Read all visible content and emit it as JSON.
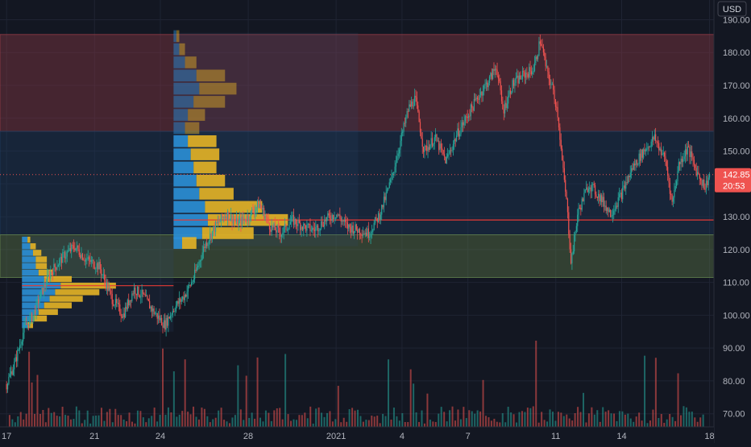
{
  "currency_label": "USD",
  "last_price_label": "142.85",
  "countdown_label": "20:53",
  "chart_data": {
    "type": "candlestick",
    "title": "",
    "ylim": [
      66,
      196
    ],
    "y_ticks": [
      70,
      80,
      90,
      100,
      110,
      120,
      130,
      140,
      150,
      160,
      170,
      180,
      190
    ],
    "x_ticks": [
      {
        "label": "17",
        "day": 0
      },
      {
        "label": "21",
        "day": 4
      },
      {
        "label": "24",
        "day": 7
      },
      {
        "label": "28",
        "day": 11
      },
      {
        "label": "2021",
        "day": 15
      },
      {
        "label": "4",
        "day": 18
      },
      {
        "label": "7",
        "day": 21
      },
      {
        "label": "11",
        "day": 25
      },
      {
        "label": "14",
        "day": 28
      },
      {
        "label": "18",
        "day": 32
      }
    ],
    "x_range_days": [
      -0.3,
      32.2
    ],
    "last_price": 142.85,
    "horizontal_line": 129,
    "zones": [
      {
        "name": "red-zone",
        "y1": 156,
        "y2": 185.5,
        "color": "#8b3a44"
      },
      {
        "name": "blue-zone",
        "y1": 124.5,
        "y2": 156,
        "color": "#1d3a5a"
      },
      {
        "name": "green-zone",
        "y1": 111.5,
        "y2": 124.5,
        "color": "#5c7a4a"
      }
    ],
    "price_path": [
      [
        0,
        79
      ],
      [
        0.4,
        86
      ],
      [
        0.8,
        96
      ],
      [
        1.2,
        100
      ],
      [
        1.6,
        107
      ],
      [
        2,
        113
      ],
      [
        2.6,
        118
      ],
      [
        3.1,
        121
      ],
      [
        3.6,
        117
      ],
      [
        4.2,
        115
      ],
      [
        4.8,
        105
      ],
      [
        5.3,
        100
      ],
      [
        5.8,
        108
      ],
      [
        6.2,
        106
      ],
      [
        6.7,
        101
      ],
      [
        7.2,
        97
      ],
      [
        7.6,
        102
      ],
      [
        8.1,
        106
      ],
      [
        8.5,
        111
      ],
      [
        9,
        121
      ],
      [
        9.5,
        127
      ],
      [
        10,
        131
      ],
      [
        10.5,
        128
      ],
      [
        11,
        130
      ],
      [
        11.5,
        134
      ],
      [
        12,
        127
      ],
      [
        12.5,
        125
      ],
      [
        13,
        129
      ],
      [
        13.5,
        127
      ],
      [
        14,
        126
      ],
      [
        14.5,
        129
      ],
      [
        15,
        131
      ],
      [
        15.5,
        127
      ],
      [
        16,
        126
      ],
      [
        16.5,
        125
      ],
      [
        17,
        131
      ],
      [
        17.5,
        141
      ],
      [
        18,
        155
      ],
      [
        18.3,
        163
      ],
      [
        18.6,
        166
      ],
      [
        19,
        150
      ],
      [
        19.5,
        154
      ],
      [
        20,
        147
      ],
      [
        20.5,
        155
      ],
      [
        21,
        161
      ],
      [
        21.5,
        167
      ],
      [
        22,
        172
      ],
      [
        22.3,
        176
      ],
      [
        22.6,
        162
      ],
      [
        23,
        170
      ],
      [
        23.5,
        173
      ],
      [
        24,
        175
      ],
      [
        24.3,
        184
      ],
      [
        24.6,
        174
      ],
      [
        24.9,
        168
      ],
      [
        25.1,
        161
      ],
      [
        25.3,
        146
      ],
      [
        25.5,
        134
      ],
      [
        25.7,
        116
      ],
      [
        26,
        131
      ],
      [
        26.5,
        140
      ],
      [
        27,
        136
      ],
      [
        27.5,
        131
      ],
      [
        28,
        137
      ],
      [
        28.5,
        145
      ],
      [
        29,
        150
      ],
      [
        29.5,
        154
      ],
      [
        30,
        147
      ],
      [
        30.3,
        134
      ],
      [
        30.6,
        146
      ],
      [
        31,
        151
      ],
      [
        31.4,
        144
      ],
      [
        31.8,
        139
      ],
      [
        32,
        142.85
      ]
    ],
    "volume_profiles": [
      {
        "name": "profile-1",
        "x_start_day": 0.7,
        "x_end_day": 7.6,
        "y_low": 95,
        "y_high": 124,
        "poc": 109,
        "rows": [
          {
            "price": 123,
            "up": 2,
            "down": 1
          },
          {
            "price": 121,
            "up": 3,
            "down": 2
          },
          {
            "price": 119,
            "up": 4,
            "down": 3
          },
          {
            "price": 117,
            "up": 5,
            "down": 4
          },
          {
            "price": 115,
            "up": 5,
            "down": 4
          },
          {
            "price": 113,
            "up": 6,
            "down": 5
          },
          {
            "price": 111,
            "up": 8,
            "down": 10
          },
          {
            "price": 109,
            "up": 14,
            "down": 20
          },
          {
            "price": 107,
            "up": 12,
            "down": 16
          },
          {
            "price": 105,
            "up": 10,
            "down": 12
          },
          {
            "price": 103,
            "up": 8,
            "down": 10
          },
          {
            "price": 101,
            "up": 6,
            "down": 7
          },
          {
            "price": 99,
            "up": 4,
            "down": 5
          },
          {
            "price": 97,
            "up": 2,
            "down": 2
          }
        ]
      },
      {
        "name": "profile-2",
        "x_start_day": 7.6,
        "x_end_day": 16,
        "y_low": 121,
        "y_high": 186,
        "poc": 129,
        "rows": [
          {
            "price": 185,
            "up": 1,
            "down": 1
          },
          {
            "price": 181,
            "up": 2,
            "down": 2
          },
          {
            "price": 177,
            "up": 4,
            "down": 4
          },
          {
            "price": 173,
            "up": 8,
            "down": 10
          },
          {
            "price": 169,
            "up": 9,
            "down": 13
          },
          {
            "price": 165,
            "up": 7,
            "down": 11
          },
          {
            "price": 161,
            "up": 5,
            "down": 6
          },
          {
            "price": 157,
            "up": 4,
            "down": 5
          },
          {
            "price": 153,
            "up": 5,
            "down": 10
          },
          {
            "price": 149,
            "up": 6,
            "down": 10
          },
          {
            "price": 145,
            "up": 7,
            "down": 8
          },
          {
            "price": 141,
            "up": 8,
            "down": 10
          },
          {
            "price": 137,
            "up": 9,
            "down": 12
          },
          {
            "price": 133,
            "up": 11,
            "down": 20
          },
          {
            "price": 129,
            "up": 12,
            "down": 28
          },
          {
            "price": 125,
            "up": 10,
            "down": 18
          },
          {
            "price": 122,
            "up": 3,
            "down": 5
          }
        ]
      }
    ],
    "series_colors": {
      "up": "#26a69a",
      "down": "#ef5350",
      "profile_up": "#2b8fd6",
      "profile_down": "#e6b426",
      "poc_line": "#e53935"
    }
  }
}
